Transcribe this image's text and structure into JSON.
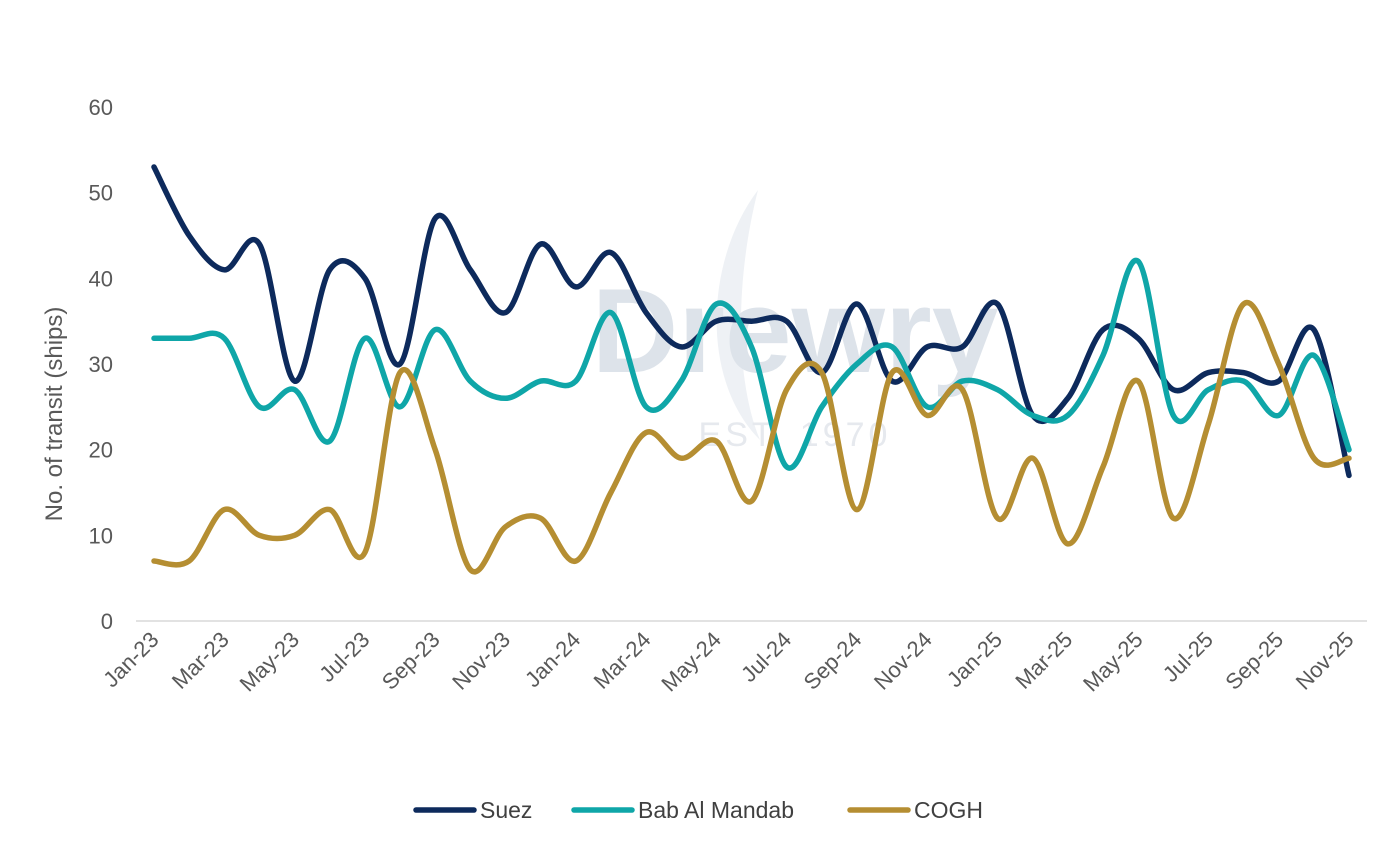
{
  "chart_data": {
    "type": "line",
    "title": "",
    "xlabel": "",
    "ylabel": "No. of transit (ships)",
    "ylim": [
      0,
      60
    ],
    "yticks": [
      0,
      10,
      20,
      30,
      40,
      50,
      60
    ],
    "grid": false,
    "legend_position": "bottom",
    "x": [
      "Jan-23",
      "Feb-23",
      "Mar-23",
      "Apr-23",
      "May-23",
      "Jun-23",
      "Jul-23",
      "Aug-23",
      "Sep-23",
      "Oct-23",
      "Nov-23",
      "Dec-23",
      "Jan-24",
      "Feb-24",
      "Mar-24",
      "Apr-24",
      "May-24",
      "Jun-24",
      "Jul-24",
      "Aug-24",
      "Sep-24",
      "Oct-24",
      "Nov-24",
      "Dec-24",
      "Jan-25",
      "Feb-25",
      "Mar-25",
      "Apr-25",
      "May-25",
      "Jun-25",
      "Jul-25",
      "Aug-25",
      "Sep-25",
      "Oct-25",
      "Nov-25"
    ],
    "xtick_labels": [
      "Jan-23",
      "Mar-23",
      "May-23",
      "Jul-23",
      "Sep-23",
      "Nov-23",
      "Jan-24",
      "Mar-24",
      "May-24",
      "Jul-24",
      "Sep-24",
      "Nov-24",
      "Jan-25",
      "Mar-25",
      "May-25",
      "Jul-25",
      "Sep-25",
      "Nov-25"
    ],
    "series": [
      {
        "name": "Suez",
        "color": "#0d2a5c",
        "values": [
          53,
          45,
          41,
          44,
          28,
          41,
          40,
          30,
          47,
          41,
          36,
          44,
          39,
          43,
          36,
          32,
          35,
          35,
          35,
          29,
          37,
          28,
          32,
          32,
          37,
          24,
          26,
          34,
          33,
          27,
          29,
          29,
          28,
          34,
          17
        ]
      },
      {
        "name": "Bab Al Mandab",
        "color": "#0fa6a8",
        "values": [
          33,
          33,
          33,
          25,
          27,
          21,
          33,
          25,
          34,
          28,
          26,
          28,
          28,
          36,
          25,
          28,
          37,
          32,
          18,
          25,
          30,
          32,
          25,
          28,
          27,
          24,
          24,
          31,
          42,
          24,
          27,
          28,
          24,
          31,
          20
        ]
      },
      {
        "name": "COGH",
        "color": "#b58e32",
        "values": [
          7,
          7,
          13,
          10,
          10,
          13,
          8,
          29,
          20,
          6,
          11,
          12,
          7,
          15,
          22,
          19,
          21,
          14,
          27,
          29,
          13,
          29,
          24,
          27,
          12,
          19,
          9,
          18,
          28,
          12,
          23,
          37,
          30,
          19,
          19
        ]
      }
    ]
  },
  "watermark": {
    "brand": "Drewry",
    "tagline": "EST. 1970"
  }
}
